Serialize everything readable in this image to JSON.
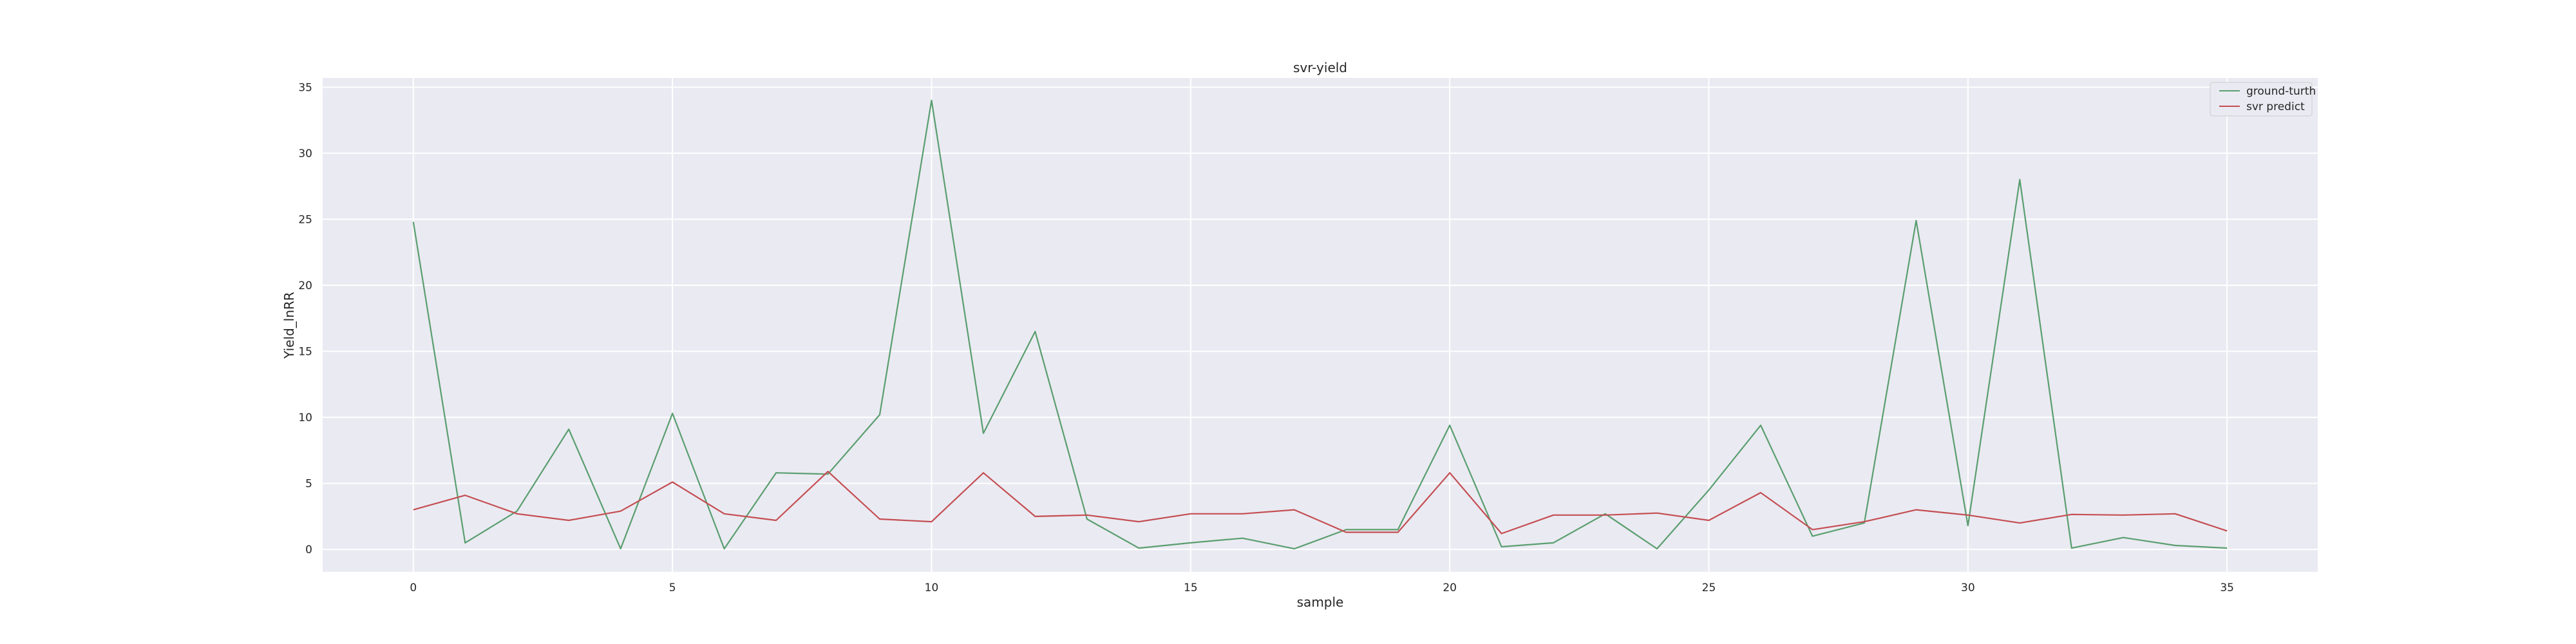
{
  "chart_data": {
    "type": "line",
    "title": "svr-yield",
    "xlabel": "sample",
    "ylabel": "Yield_lnRR",
    "xlim": [
      -1.75,
      36.75
    ],
    "ylim": [
      -1.7,
      35.7
    ],
    "xticks": [
      0,
      5,
      10,
      15,
      20,
      25,
      30,
      35
    ],
    "yticks": [
      0,
      5,
      10,
      15,
      20,
      25,
      30,
      35
    ],
    "grid": true,
    "legend_position": "top-right",
    "x": [
      0,
      1,
      2,
      3,
      4,
      5,
      6,
      7,
      8,
      9,
      10,
      11,
      12,
      13,
      14,
      15,
      16,
      17,
      18,
      19,
      20,
      21,
      22,
      23,
      24,
      25,
      26,
      27,
      28,
      29,
      30,
      31,
      32,
      33,
      34,
      35
    ],
    "series": [
      {
        "name": "ground-turth",
        "color": "#5a9e6f",
        "values": [
          24.8,
          0.5,
          2.9,
          9.1,
          0.05,
          10.3,
          0.05,
          5.8,
          5.7,
          10.2,
          34.0,
          8.8,
          16.5,
          2.3,
          0.1,
          0.5,
          0.85,
          0.05,
          1.5,
          1.5,
          9.4,
          0.2,
          0.5,
          2.7,
          0.05,
          4.5,
          9.4,
          1.0,
          2.0,
          24.9,
          1.8,
          28.0,
          0.1,
          0.9,
          0.3,
          0.1
        ]
      },
      {
        "name": "svr predict",
        "color": "#c44e52",
        "values": [
          3.0,
          4.1,
          2.7,
          2.2,
          2.9,
          5.1,
          2.7,
          2.2,
          5.9,
          2.3,
          2.1,
          5.8,
          2.5,
          2.6,
          2.1,
          2.7,
          2.7,
          3.0,
          1.3,
          1.3,
          5.8,
          1.2,
          2.6,
          2.6,
          2.75,
          2.2,
          4.3,
          1.5,
          2.1,
          3.0,
          2.6,
          2.0,
          2.65,
          2.6,
          2.7,
          1.4
        ]
      }
    ]
  }
}
